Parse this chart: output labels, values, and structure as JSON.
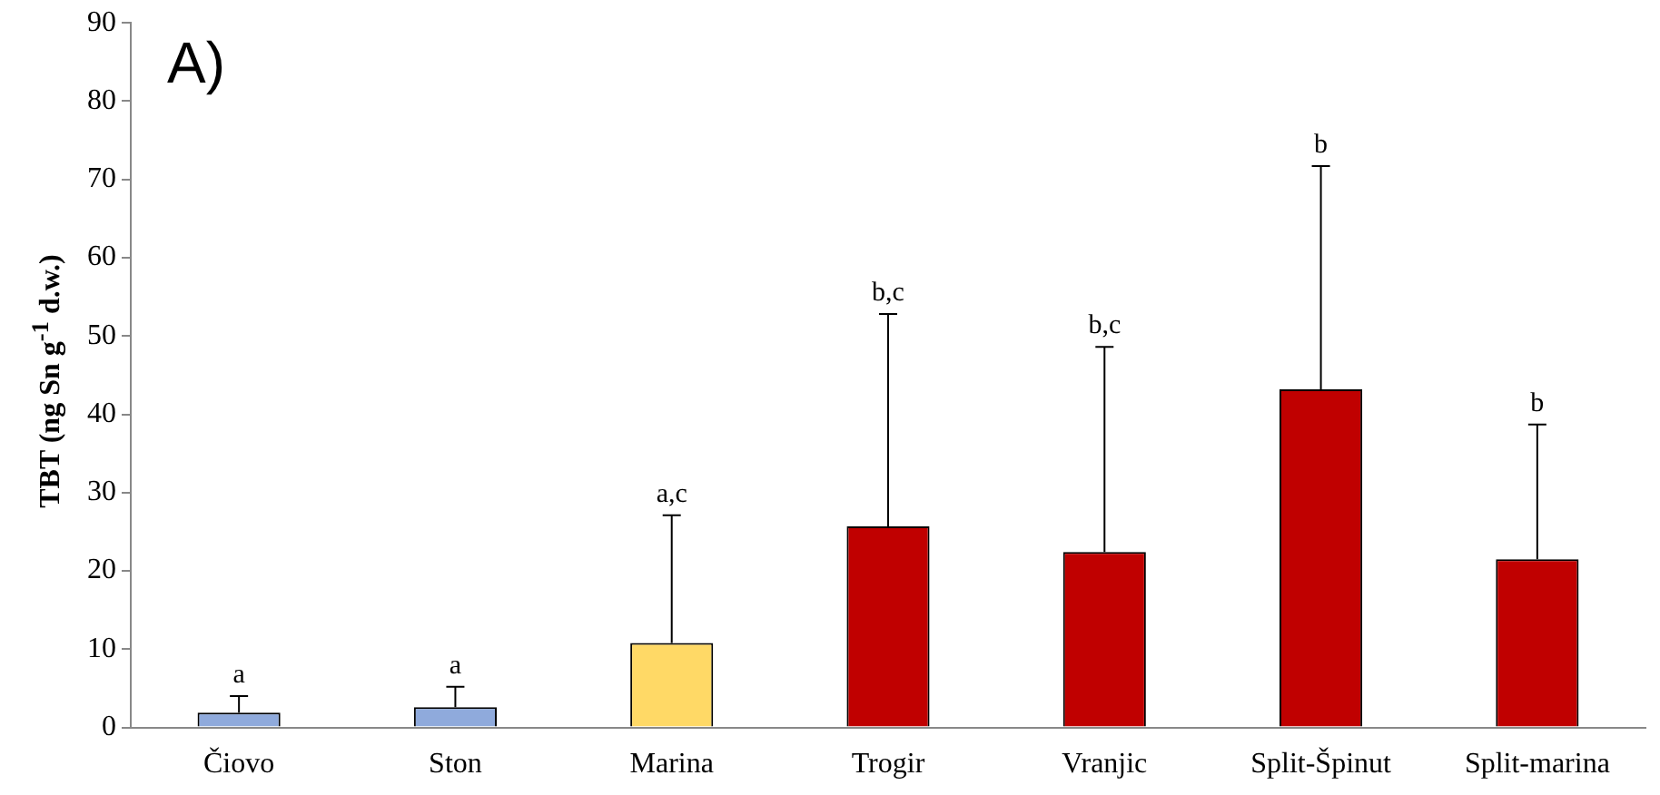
{
  "chart_data": {
    "type": "bar",
    "ylabel": "TBT (ng Sn g$^{-1}$ d.w.)",
    "categories": [
      "Čiovo",
      "Ston",
      "Marina",
      "Trogir",
      "Vranjic",
      "Split-Špinut",
      "Split-marina"
    ],
    "values": [
      1.9,
      2.6,
      10.8,
      25.7,
      22.4,
      43.2,
      21.5
    ],
    "colors": [
      "#8faadc",
      "#8faadc",
      "#ffd966",
      "#c00000",
      "#c00000",
      "#c00000",
      "#c00000"
    ],
    "errors": [
      [
        1.9,
        4.0
      ],
      [
        2.6,
        5.2
      ],
      [
        10.8,
        27.1
      ],
      [
        25.7,
        52.8
      ],
      [
        22.4,
        48.6
      ],
      [
        43.2,
        71.7
      ],
      [
        21.5,
        38.7
      ]
    ],
    "ylim": [
      0,
      90
    ],
    "yticks": [
      0,
      10,
      20,
      30,
      40,
      50,
      60,
      70,
      80,
      90
    ],
    "grid": false,
    "legend": false,
    "annotations": [
      "A)",
      {
        "text": "a",
        "x": "Čiovo",
        "y": 4.0
      },
      {
        "text": "a",
        "x": "Ston",
        "y": 5.2
      },
      {
        "text": "a,c",
        "x": "Marina",
        "y": 27.1
      },
      {
        "text": "b,c",
        "x": "Trogir",
        "y": 52.8
      },
      {
        "text": "b,c",
        "x": "Vranjic",
        "y": 48.6
      },
      {
        "text": "b",
        "x": "Split-Špinut",
        "y": 71.7
      },
      {
        "text": "b",
        "x": "Split-marina",
        "y": 38.7
      }
    ]
  }
}
